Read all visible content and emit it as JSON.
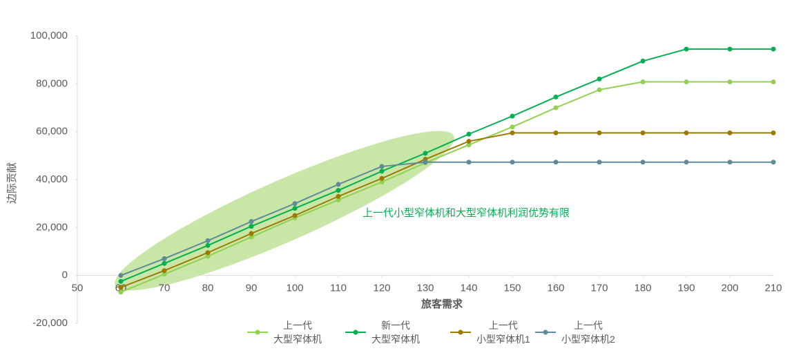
{
  "chart_data": {
    "type": "line",
    "x_label": "旅客需求",
    "y_label": "边际贡献",
    "annotation": "上一代小型窄体机和大型窄体机利润优势有限",
    "x": [
      60,
      70,
      80,
      90,
      100,
      110,
      120,
      130,
      140,
      150,
      160,
      170,
      180,
      190,
      200,
      210
    ],
    "series": [
      {
        "name": "上一代\n大型窄体机",
        "color": "#92d050",
        "values": [
          -7000,
          500,
          8000,
          16000,
          24000,
          31500,
          39000,
          47000,
          54500,
          62000,
          70000,
          77500,
          80800,
          80800,
          80800,
          80800
        ]
      },
      {
        "name": "新一代\n大型窄体机",
        "color": "#00b050",
        "values": [
          -2500,
          5000,
          12500,
          20500,
          28000,
          35500,
          43500,
          51000,
          59000,
          66500,
          74500,
          82000,
          89500,
          94500,
          94500,
          94500
        ]
      },
      {
        "name": "上一代\n小型窄体机1",
        "color": "#9c7a00",
        "values": [
          -5000,
          2000,
          9500,
          17500,
          25000,
          33000,
          40500,
          48500,
          56000,
          59500,
          59500,
          59500,
          59500,
          59500,
          59500,
          59500
        ]
      },
      {
        "name": "上一代\n小型窄体机2",
        "color": "#5e8a99",
        "values": [
          0,
          7000,
          14500,
          22500,
          30000,
          38000,
          45500,
          47300,
          47300,
          47300,
          47300,
          47300,
          47300,
          47300,
          47300,
          47300
        ]
      }
    ],
    "xlim": [
      50,
      210
    ],
    "xticks": [
      50,
      60,
      70,
      80,
      90,
      100,
      110,
      120,
      130,
      140,
      150,
      160,
      170,
      180,
      190,
      200,
      210
    ],
    "ylim": [
      -20000,
      100000
    ],
    "yticks": [
      {
        "value": -20000,
        "label": "-20,000"
      },
      0,
      {
        "value": 20000,
        "label": "20,000"
      },
      {
        "value": 40000,
        "label": "40,000"
      },
      {
        "value": 60000,
        "label": "60,000"
      },
      {
        "value": 80000,
        "label": "80,000"
      },
      {
        "value": 100000,
        "label": "100,000"
      }
    ]
  }
}
